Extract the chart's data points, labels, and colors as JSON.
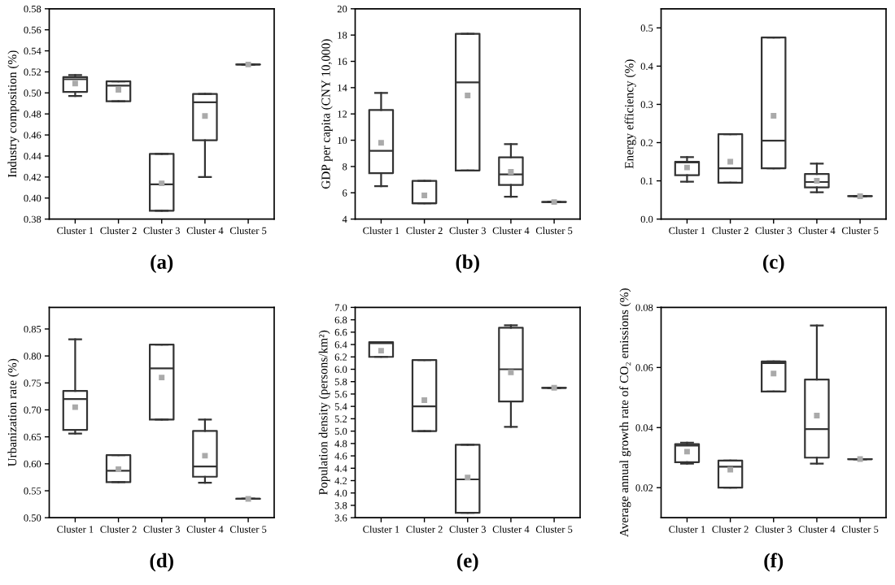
{
  "chart_data": [
    {
      "type": "box",
      "title": "(a)",
      "ylabel": "Industry composition (%)",
      "categories": [
        "Cluster 1",
        "Cluster 2",
        "Cluster 3",
        "Cluster 4",
        "Cluster 5"
      ],
      "color": "#333333",
      "ylim": [
        0.38,
        0.58
      ],
      "yticks": [
        0.38,
        {
          "value": 0.4,
          "label": "0.40"
        },
        0.42,
        0.44,
        0.46,
        0.48,
        {
          "value": 0.5,
          "label": "0.50"
        },
        0.52,
        0.54,
        0.56,
        0.58
      ],
      "grid": false,
      "boxes": [
        {
          "low": 0.497,
          "q1": 0.501,
          "median": 0.513,
          "q3": 0.515,
          "high": 0.517,
          "mean": 0.509
        },
        {
          "low": 0.492,
          "q1": 0.492,
          "median": 0.507,
          "q3": 0.511,
          "high": 0.511,
          "mean": 0.503
        },
        {
          "low": 0.388,
          "q1": 0.388,
          "median": 0.413,
          "q3": 0.442,
          "high": 0.442,
          "mean": 0.414
        },
        {
          "low": 0.42,
          "q1": 0.455,
          "median": 0.491,
          "q3": 0.499,
          "high": 0.499,
          "mean": 0.478
        },
        {
          "low": 0.527,
          "q1": 0.527,
          "median": 0.527,
          "q3": 0.527,
          "high": 0.527,
          "mean": 0.527
        }
      ]
    },
    {
      "type": "box",
      "title": "(b)",
      "ylabel": "GDP per capita (CNY 10,000)",
      "categories": [
        "Cluster 1",
        "Cluster 2",
        "Cluster 3",
        "Cluster 4",
        "Cluster 5"
      ],
      "color": "#333333",
      "ylim": [
        4,
        20
      ],
      "yticks": [
        4,
        6,
        8,
        10,
        12,
        14,
        16,
        18,
        20
      ],
      "grid": false,
      "boxes": [
        {
          "low": 6.5,
          "q1": 7.5,
          "median": 9.2,
          "q3": 12.3,
          "high": 13.6,
          "mean": 9.8
        },
        {
          "low": 5.2,
          "q1": 5.2,
          "median": 5.2,
          "q3": 6.9,
          "high": 6.9,
          "mean": 5.8
        },
        {
          "low": 7.7,
          "q1": 7.7,
          "median": 14.4,
          "q3": 18.1,
          "high": 18.1,
          "mean": 13.4
        },
        {
          "low": 5.7,
          "q1": 6.6,
          "median": 7.4,
          "q3": 8.7,
          "high": 9.7,
          "mean": 7.6
        },
        {
          "low": 5.3,
          "q1": 5.3,
          "median": 5.3,
          "q3": 5.3,
          "high": 5.3,
          "mean": 5.3
        }
      ]
    },
    {
      "type": "box",
      "title": "(c)",
      "ylabel": "Energy efficiency (%)",
      "categories": [
        "Cluster 1",
        "Cluster 2",
        "Cluster 3",
        "Cluster 4",
        "Cluster 5"
      ],
      "color": "#333333",
      "ylim": [
        0,
        0.55
      ],
      "yticks": [
        {
          "value": 0,
          "label": "0.0"
        },
        0.1,
        0.2,
        0.3,
        0.4,
        0.5
      ],
      "grid": false,
      "boxes": [
        {
          "low": 0.098,
          "q1": 0.115,
          "median": 0.148,
          "q3": 0.15,
          "high": 0.162,
          "mean": 0.135
        },
        {
          "low": 0.095,
          "q1": 0.095,
          "median": 0.133,
          "q3": 0.222,
          "high": 0.222,
          "mean": 0.15
        },
        {
          "low": 0.133,
          "q1": 0.133,
          "median": 0.205,
          "q3": 0.475,
          "high": 0.475,
          "mean": 0.27
        },
        {
          "low": 0.07,
          "q1": 0.083,
          "median": 0.097,
          "q3": 0.118,
          "high": 0.145,
          "mean": 0.1
        },
        {
          "low": 0.06,
          "q1": 0.06,
          "median": 0.06,
          "q3": 0.06,
          "high": 0.06,
          "mean": 0.06
        }
      ]
    },
    {
      "type": "box",
      "title": "(d)",
      "ylabel": "Urbanization rate (%)",
      "categories": [
        "Cluster 1",
        "Cluster 2",
        "Cluster 3",
        "Cluster 4",
        "Cluster 5"
      ],
      "color": "#333333",
      "ylim": [
        0.5,
        0.89
      ],
      "yticks": [
        {
          "value": 0.5,
          "label": "0.50"
        },
        0.55,
        {
          "value": 0.6,
          "label": "0.60"
        },
        0.65,
        {
          "value": 0.7,
          "label": "0.70"
        },
        0.75,
        {
          "value": 0.8,
          "label": "0.80"
        },
        0.85
      ],
      "grid": false,
      "boxes": [
        {
          "low": 0.656,
          "q1": 0.663,
          "median": 0.72,
          "q3": 0.735,
          "high": 0.831,
          "mean": 0.705
        },
        {
          "low": 0.566,
          "q1": 0.566,
          "median": 0.587,
          "q3": 0.616,
          "high": 0.616,
          "mean": 0.59
        },
        {
          "low": 0.682,
          "q1": 0.682,
          "median": 0.777,
          "q3": 0.821,
          "high": 0.821,
          "mean": 0.76
        },
        {
          "low": 0.565,
          "q1": 0.576,
          "median": 0.595,
          "q3": 0.661,
          "high": 0.682,
          "mean": 0.615
        },
        {
          "low": 0.535,
          "q1": 0.535,
          "median": 0.535,
          "q3": 0.535,
          "high": 0.535,
          "mean": 0.535
        }
      ]
    },
    {
      "type": "box",
      "title": "(e)",
      "ylabel": "Population density (persons/km²)",
      "categories": [
        "Cluster 1",
        "Cluster 2",
        "Cluster 3",
        "Cluster 4",
        "Cluster 5"
      ],
      "color": "#333333",
      "ylim": [
        3.6,
        7.0
      ],
      "yticks": [
        3.6,
        3.8,
        {
          "value": 4.0,
          "label": "4.0"
        },
        4.2,
        4.4,
        4.6,
        4.8,
        {
          "value": 5.0,
          "label": "5.0"
        },
        5.2,
        5.4,
        5.6,
        5.8,
        {
          "value": 6.0,
          "label": "6.0"
        },
        6.2,
        6.4,
        6.6,
        6.8,
        {
          "value": 7.0,
          "label": "7.0"
        }
      ],
      "grid": false,
      "boxes": [
        {
          "low": 6.2,
          "q1": 6.2,
          "median": 6.42,
          "q3": 6.44,
          "high": 6.44,
          "mean": 6.3
        },
        {
          "low": 5.0,
          "q1": 5.0,
          "median": 5.4,
          "q3": 6.15,
          "high": 6.15,
          "mean": 5.5
        },
        {
          "low": 3.68,
          "q1": 3.68,
          "median": 4.22,
          "q3": 4.78,
          "high": 4.78,
          "mean": 4.25
        },
        {
          "low": 5.07,
          "q1": 5.48,
          "median": 6.0,
          "q3": 6.67,
          "high": 6.71,
          "mean": 5.95
        },
        {
          "low": 5.7,
          "q1": 5.7,
          "median": 5.7,
          "q3": 5.7,
          "high": 5.7,
          "mean": 5.7
        }
      ]
    },
    {
      "type": "box",
      "title": "(f)",
      "ylabel": "Average annual growth rate of CO₂ emissions (%)",
      "categories": [
        "Cluster 1",
        "Cluster 2",
        "Cluster 3",
        "Cluster 4",
        "Cluster 5"
      ],
      "color": "#333333",
      "ylim": [
        0.01,
        0.08
      ],
      "yticks": [
        0.02,
        0.04,
        0.06,
        0.08
      ],
      "grid": false,
      "boxes": [
        {
          "low": 0.028,
          "q1": 0.0285,
          "median": 0.034,
          "q3": 0.0345,
          "high": 0.035,
          "mean": 0.032
        },
        {
          "low": 0.02,
          "q1": 0.02,
          "median": 0.027,
          "q3": 0.029,
          "high": 0.029,
          "mean": 0.026
        },
        {
          "low": 0.052,
          "q1": 0.052,
          "median": 0.0615,
          "q3": 0.062,
          "high": 0.062,
          "mean": 0.058
        },
        {
          "low": 0.028,
          "q1": 0.03,
          "median": 0.0395,
          "q3": 0.056,
          "high": 0.074,
          "mean": 0.044
        },
        {
          "low": 0.0295,
          "q1": 0.0295,
          "median": 0.0295,
          "q3": 0.0295,
          "high": 0.0295,
          "mean": 0.0295
        }
      ]
    }
  ]
}
